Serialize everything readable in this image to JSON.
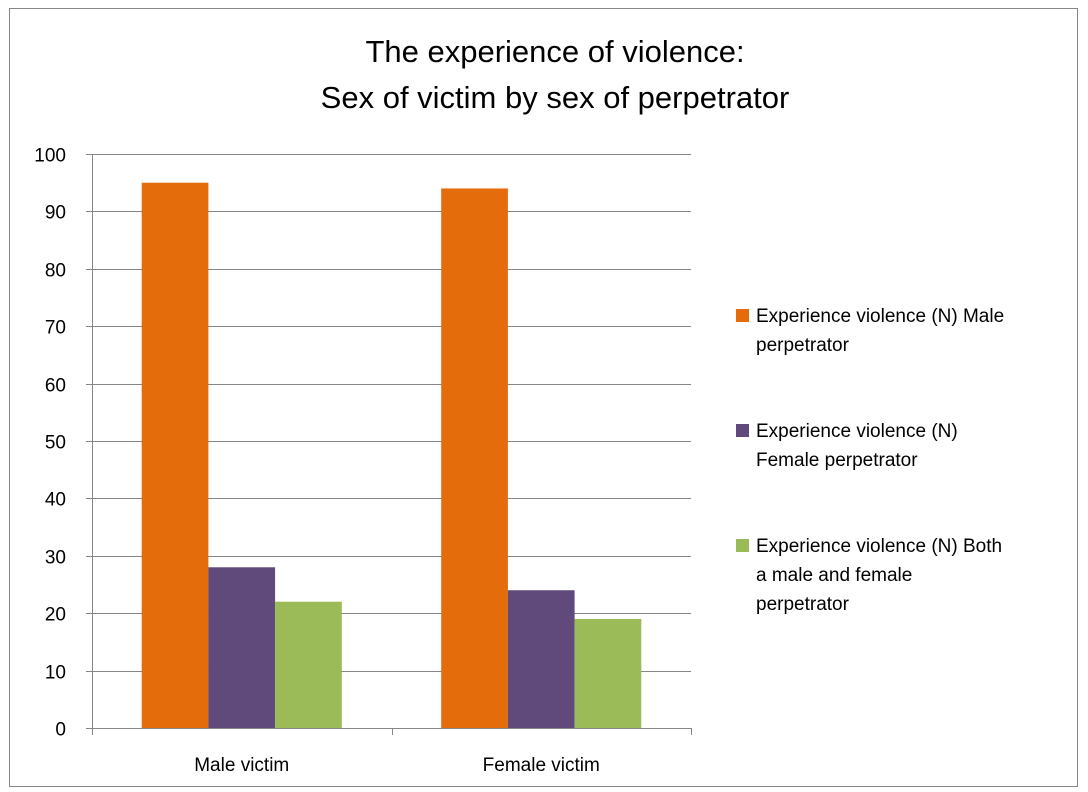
{
  "chart_data": {
    "type": "bar",
    "title": [
      "The experience of violence:",
      "Sex of victim by sex of perpetrator"
    ],
    "xlabel": "",
    "ylabel": "",
    "categories": [
      "Male victim",
      "Female victim"
    ],
    "series": [
      {
        "name": "Experience violence (N) Male perpetrator",
        "legend_lines": [
          "Experience violence (N) Male",
          "perpetrator"
        ],
        "values": [
          95,
          94
        ],
        "color": "#E46C0A"
      },
      {
        "name": "Experience violence (N) Female perpetrator",
        "legend_lines": [
          "Experience violence (N)",
          "Female perpetrator"
        ],
        "values": [
          28,
          24
        ],
        "color": "#604A7B"
      },
      {
        "name": "Experience violence (N) Both a male and female perpetrator",
        "legend_lines": [
          "Experience violence (N) Both",
          "a male and female",
          "perpetrator"
        ],
        "values": [
          22,
          19
        ],
        "color": "#9BBB59"
      }
    ],
    "ylim": [
      0,
      100
    ],
    "yticks": [
      "0",
      "10",
      "20",
      "30",
      "40",
      "50",
      "60",
      "70",
      "80",
      "90",
      "100"
    ],
    "grid": true,
    "legend_position": "right"
  }
}
